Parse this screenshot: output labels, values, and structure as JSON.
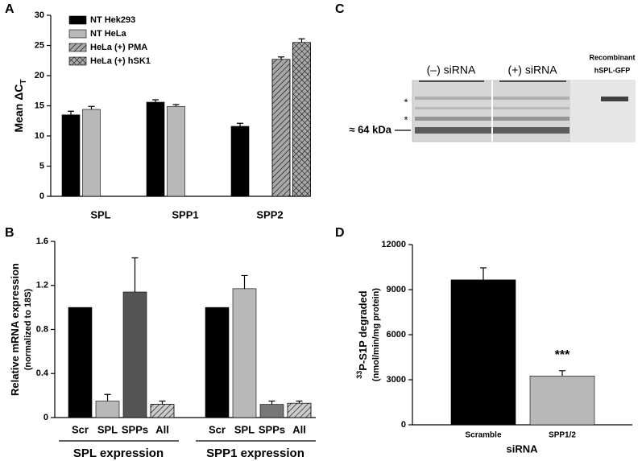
{
  "panel_labels": [
    "A",
    "B",
    "C",
    "D"
  ],
  "blot": {
    "lanes": [
      "(–) siRNA",
      "(+) siRNA"
    ],
    "recombinant": [
      "Recombinant",
      "hSPL-GFP"
    ],
    "markers": [
      "*",
      "*"
    ],
    "size": "≈ 64 kDa"
  },
  "chart_data": [
    {
      "type": "grouped_bar",
      "ylabel": [
        "Mean ΔC",
        "T"
      ],
      "categories": [
        "SPL",
        "SPP1",
        "SPP2"
      ],
      "series": [
        {
          "name": "NT Hek293",
          "color": "#000000",
          "values": [
            13.5,
            15.6,
            11.6
          ],
          "errors": [
            0.6,
            0.4,
            0.5
          ]
        },
        {
          "name": "NT HeLa",
          "color": "#b8b8b8",
          "values": [
            14.4,
            14.9,
            null
          ],
          "errors": [
            0.5,
            0.3,
            null
          ]
        },
        {
          "name": "HeLa (+) PMA",
          "color": "#a8a8a8",
          "pattern": "hatch",
          "values": [
            null,
            null,
            22.7
          ],
          "errors": [
            null,
            null,
            0.4
          ]
        },
        {
          "name": "HeLa (+) hSK1",
          "color": "#a8a8a8",
          "pattern": "crosshatch",
          "values": [
            null,
            null,
            25.5
          ],
          "errors": [
            null,
            null,
            0.6
          ]
        }
      ],
      "ylim": [
        0,
        30
      ],
      "yticks": [
        0,
        5,
        10,
        15,
        20,
        25,
        30
      ],
      "legend": "upper left"
    },
    {
      "type": "bar",
      "ylabel": [
        "Relative mRNA expression",
        "(normalized to 18S)"
      ],
      "groups": [
        {
          "name": "SPL expression",
          "categories": [
            "Scr",
            "SPL",
            "SPPs",
            "All"
          ],
          "values": [
            1.0,
            0.15,
            1.14,
            0.12
          ],
          "errors": [
            null,
            0.06,
            0.31,
            0.03
          ],
          "colors": [
            "#000000",
            "#b8b8b8",
            "#555555",
            "#cccccc"
          ],
          "patterns": [
            null,
            null,
            null,
            "hatch"
          ]
        },
        {
          "name": "SPP1 expression",
          "categories": [
            "Scr",
            "SPL",
            "SPPs",
            "All"
          ],
          "values": [
            1.0,
            1.17,
            0.12,
            0.13
          ],
          "errors": [
            null,
            0.12,
            0.03,
            0.02
          ],
          "colors": [
            "#000000",
            "#b8b8b8",
            "#777777",
            "#cccccc"
          ],
          "patterns": [
            null,
            null,
            null,
            "hatch"
          ]
        }
      ],
      "ylim": [
        0,
        1.6
      ],
      "yticks": [
        0,
        0.4,
        0.8,
        1.2,
        1.6
      ]
    },
    {
      "type": "bar",
      "ylabel": [
        "33",
        "P-S1P degraded"
      ],
      "ylabel2": "(nmol/min/mg protein)",
      "xlabel": "siRNA",
      "categories": [
        "Scramble",
        "SPP1/2"
      ],
      "values": [
        9650,
        3250
      ],
      "errors": [
        800,
        350
      ],
      "colors": [
        "#000000",
        "#b8b8b8"
      ],
      "annotation": "***",
      "ylim": [
        0,
        12000
      ],
      "yticks": [
        0,
        3000,
        6000,
        9000,
        12000
      ]
    }
  ]
}
